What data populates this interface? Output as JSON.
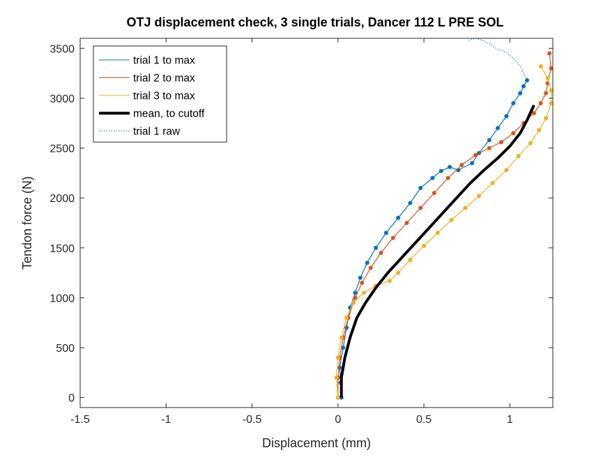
{
  "chart_data": {
    "type": "line",
    "title": "OTJ displacement check, 3 single trials, Dancer 112 L PRE SOL",
    "xlabel": "Displacement (mm)",
    "ylabel": "Tendon force (N)",
    "xlim": [
      -1.5,
      1.25
    ],
    "ylim": [
      -100,
      3600
    ],
    "xticks": [
      -1.5,
      -1,
      -0.5,
      0,
      0.5,
      1
    ],
    "xtick_labels": [
      "-1.5",
      "-1",
      "-0.5",
      "0",
      "0.5",
      "1"
    ],
    "yticks": [
      0,
      500,
      1000,
      1500,
      2000,
      2500,
      3000,
      3500
    ],
    "ytick_labels": [
      "0",
      "500",
      "1000",
      "1500",
      "2000",
      "2500",
      "3000",
      "3500"
    ],
    "grid": false,
    "legend_position": "top-left",
    "series": [
      {
        "name": "trial 1 to max",
        "color": "#0072BD",
        "style": "line-dots",
        "x": [
          0.02,
          0.015,
          0.01,
          0.03,
          0.05,
          0.07,
          0.1,
          0.13,
          0.17,
          0.22,
          0.28,
          0.35,
          0.42,
          0.48,
          0.55,
          0.6,
          0.65,
          0.7,
          0.78,
          0.82,
          0.88,
          0.93,
          0.98,
          1.02,
          1.06,
          1.08,
          1.1
        ],
        "y": [
          0,
          150,
          300,
          500,
          700,
          900,
          1050,
          1200,
          1350,
          1500,
          1650,
          1800,
          1950,
          2100,
          2200,
          2270,
          2310,
          2280,
          2350,
          2450,
          2580,
          2700,
          2820,
          2950,
          3050,
          3120,
          3180
        ]
      },
      {
        "name": "trial 2 to max",
        "color": "#D95319",
        "style": "line-dots",
        "x": [
          0.0,
          0.0,
          0.01,
          0.03,
          0.06,
          0.1,
          0.14,
          0.19,
          0.25,
          0.32,
          0.4,
          0.48,
          0.56,
          0.64,
          0.72,
          0.8,
          0.88,
          0.95,
          1.02,
          1.08,
          1.14,
          1.18,
          1.21,
          1.22,
          1.24,
          1.23
        ],
        "y": [
          0,
          200,
          400,
          600,
          800,
          1000,
          1150,
          1300,
          1450,
          1600,
          1750,
          1900,
          2050,
          2200,
          2330,
          2430,
          2500,
          2560,
          2650,
          2750,
          2850,
          2950,
          3050,
          3150,
          3300,
          3450
        ]
      },
      {
        "name": "trial 3 to max",
        "color": "#EDB120",
        "style": "line-dots",
        "x": [
          0.0,
          -0.01,
          0.0,
          0.02,
          0.05,
          0.09,
          0.15,
          0.22,
          0.3,
          0.35,
          0.42,
          0.5,
          0.58,
          0.66,
          0.74,
          0.82,
          0.9,
          0.98,
          1.05,
          1.12,
          1.17,
          1.21,
          1.24,
          1.24,
          1.22,
          1.18
        ],
        "y": [
          0,
          200,
          400,
          600,
          800,
          950,
          1050,
          1120,
          1170,
          1250,
          1380,
          1520,
          1650,
          1780,
          1900,
          2020,
          2150,
          2280,
          2420,
          2550,
          2680,
          2800,
          2950,
          3080,
          3200,
          3320
        ]
      },
      {
        "name": "mean, to cutoff",
        "color": "#000000",
        "style": "thick-line",
        "x": [
          0.02,
          0.02,
          0.04,
          0.07,
          0.11,
          0.16,
          0.22,
          0.29,
          0.37,
          0.45,
          0.53,
          0.61,
          0.69,
          0.77,
          0.85,
          0.93,
          1.0,
          1.06,
          1.1,
          1.14
        ],
        "y": [
          0,
          200,
          400,
          600,
          800,
          950,
          1100,
          1250,
          1400,
          1550,
          1700,
          1850,
          2000,
          2150,
          2280,
          2400,
          2520,
          2650,
          2780,
          2930
        ]
      },
      {
        "name": "trial 1 raw",
        "color": "#0072BD",
        "style": "dotted",
        "x": [
          1.1,
          1.08,
          1.06,
          1.04,
          1.02,
          1.0,
          0.98,
          0.95,
          0.92,
          0.9,
          0.88,
          0.86,
          0.84,
          0.82,
          0.8,
          0.78,
          0.76
        ],
        "y": [
          3180,
          3250,
          3320,
          3360,
          3400,
          3430,
          3460,
          3480,
          3500,
          3520,
          3550,
          3560,
          3580,
          3590,
          3600,
          3590,
          3580
        ]
      }
    ]
  }
}
